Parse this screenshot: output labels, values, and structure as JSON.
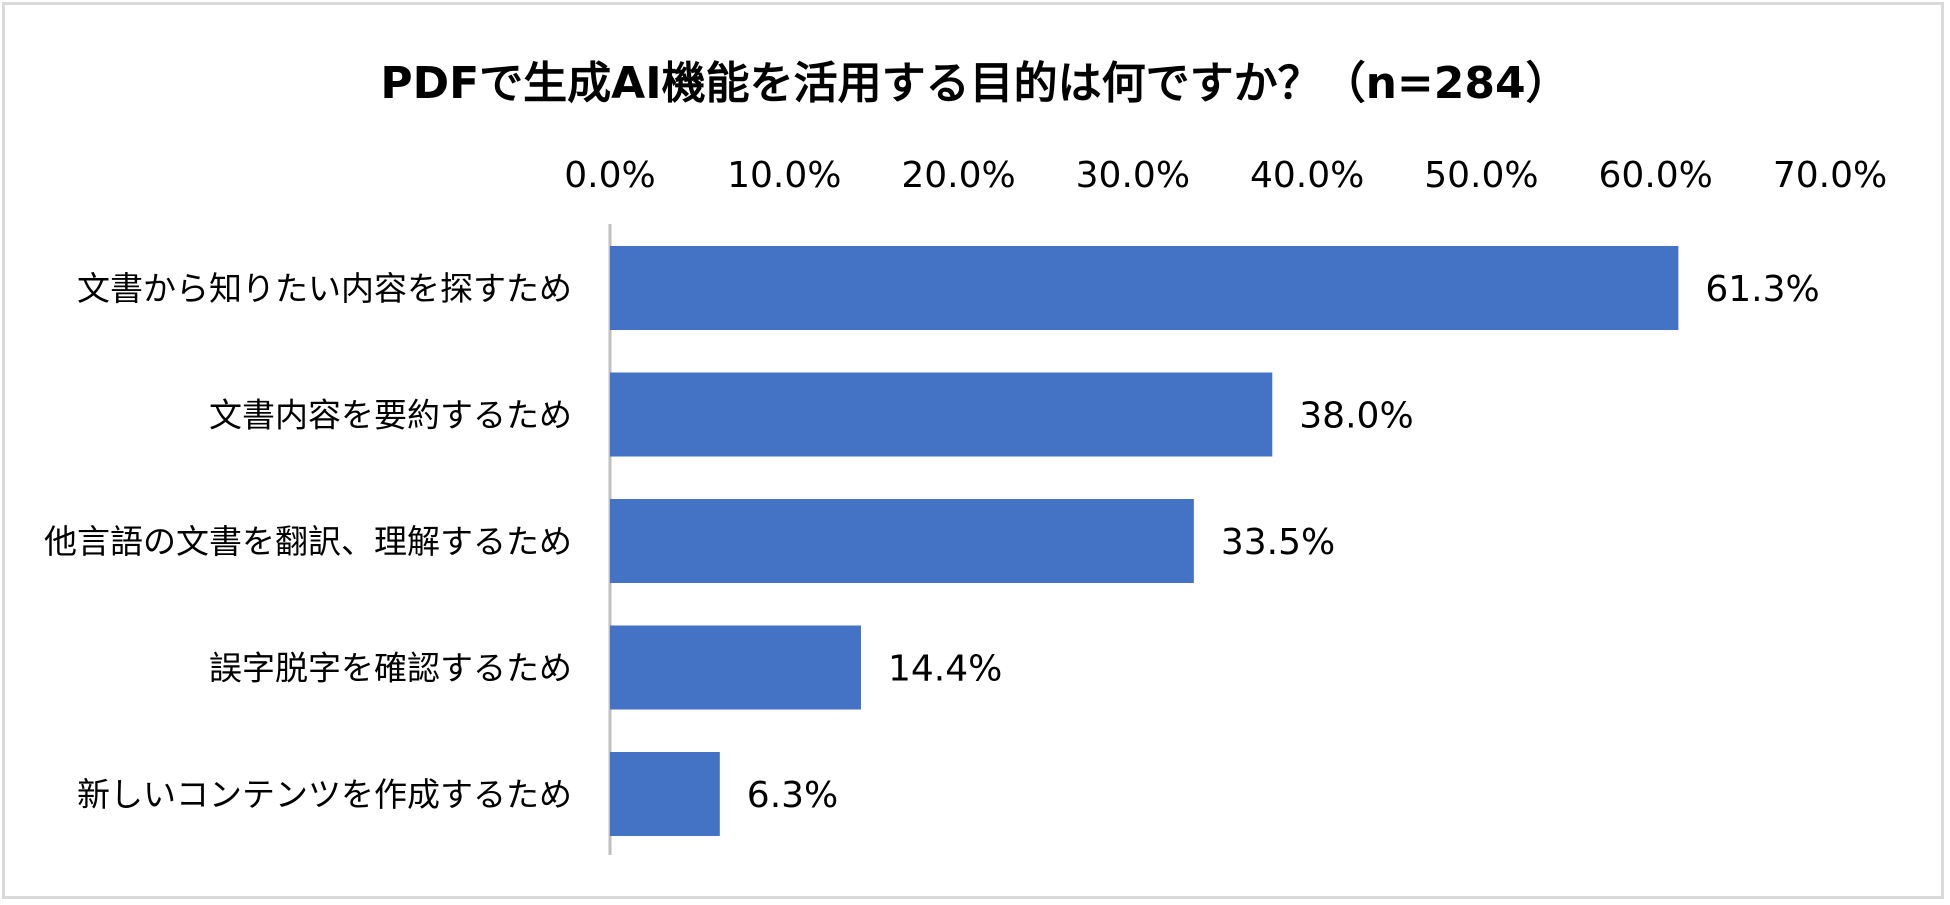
{
  "chart_data": {
    "type": "bar",
    "orientation": "horizontal",
    "title": "PDFで生成AI機能を活用する目的は何ですか？（n=284）",
    "categories": [
      "文書から知りたい内容を探すため",
      "文書内容を要約するため",
      "他言語の文書を翻訳、理解するため",
      "誤字脱字を確認するため",
      "新しいコンテンツを作成するため"
    ],
    "values": [
      61.3,
      38.0,
      33.5,
      14.4,
      6.3
    ],
    "value_labels": [
      "61.3%",
      "38.0%",
      "33.5%",
      "14.4%",
      "6.3%"
    ],
    "xlim": [
      0,
      70
    ],
    "x_ticks": [
      0,
      10,
      20,
      30,
      40,
      50,
      60,
      70
    ],
    "x_tick_labels": [
      "0.0%",
      "10.0%",
      "20.0%",
      "30.0%",
      "40.0%",
      "50.0%",
      "60.0%",
      "70.0%"
    ],
    "x_axis_position": "top",
    "grid": false,
    "legend": "none",
    "bar_color": "#4472c4",
    "axis_color": "#bfbfbf"
  }
}
